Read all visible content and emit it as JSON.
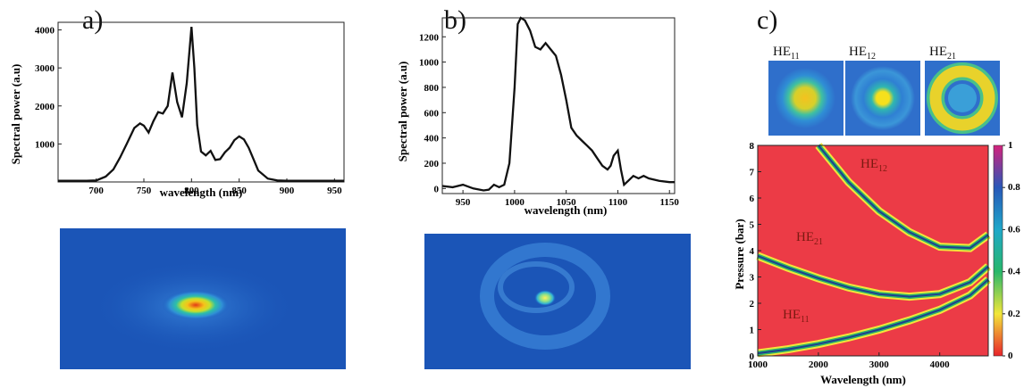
{
  "panels": {
    "a": "a)",
    "b": "b)",
    "c": "c)"
  },
  "chart_data": [
    {
      "type": "line",
      "panel": "a",
      "xlabel": "wavelength (nm)",
      "ylabel": "Spectral power (a.u)",
      "xlim": [
        660,
        960
      ],
      "ylim": [
        0,
        4200
      ],
      "xticks": [
        700,
        750,
        800,
        850,
        900,
        950
      ],
      "yticks": [
        1000,
        2000,
        3000,
        4000
      ],
      "x": [
        660,
        690,
        700,
        710,
        718,
        725,
        732,
        740,
        746,
        750,
        755,
        760,
        765,
        770,
        775,
        780,
        785,
        790,
        795,
        800,
        803,
        806,
        810,
        815,
        820,
        825,
        830,
        835,
        840,
        845,
        850,
        855,
        860,
        865,
        870,
        880,
        890,
        900,
        920,
        960
      ],
      "y": [
        30,
        30,
        40,
        140,
        330,
        640,
        1000,
        1420,
        1540,
        1480,
        1300,
        1600,
        1840,
        1800,
        2000,
        2880,
        2100,
        1700,
        2600,
        4080,
        3000,
        1500,
        800,
        700,
        820,
        580,
        600,
        780,
        900,
        1100,
        1200,
        1120,
        900,
        600,
        300,
        90,
        40,
        30,
        30,
        30
      ]
    },
    {
      "type": "line",
      "panel": "b",
      "xlabel": "wavelength (nm)",
      "ylabel": "Spectral power (a.u)",
      "xlim": [
        930,
        1155
      ],
      "ylim": [
        -40,
        1350
      ],
      "xticks": [
        950,
        1000,
        1050,
        1100,
        1150
      ],
      "yticks": [
        0,
        200,
        400,
        600,
        800,
        1000,
        1200
      ],
      "x": [
        930,
        940,
        950,
        960,
        970,
        975,
        980,
        985,
        990,
        995,
        1000,
        1003,
        1006,
        1010,
        1015,
        1020,
        1025,
        1030,
        1035,
        1040,
        1045,
        1050,
        1055,
        1060,
        1065,
        1070,
        1075,
        1080,
        1085,
        1090,
        1093,
        1096,
        1100,
        1103,
        1106,
        1110,
        1115,
        1120,
        1125,
        1130,
        1140,
        1150,
        1155
      ],
      "y": [
        20,
        10,
        30,
        0,
        -15,
        -10,
        30,
        10,
        30,
        200,
        800,
        1300,
        1350,
        1330,
        1250,
        1120,
        1100,
        1150,
        1100,
        1050,
        900,
        700,
        480,
        420,
        380,
        340,
        300,
        240,
        180,
        150,
        180,
        260,
        300,
        150,
        30,
        60,
        100,
        80,
        100,
        80,
        60,
        50,
        50
      ]
    },
    {
      "type": "heatmap",
      "panel": "c",
      "xlabel": "Wavelength (nm)",
      "ylabel": "Pressure (bar)",
      "xlim": [
        1000,
        4800
      ],
      "ylim": [
        0,
        8
      ],
      "xticks": [
        1000,
        2000,
        3000,
        4000
      ],
      "yticks": [
        0,
        1,
        2,
        3,
        4,
        5,
        6,
        7,
        8
      ],
      "colorbar_ticks": [
        0,
        0.2,
        0.4,
        0.6,
        0.8,
        1
      ],
      "series": [
        {
          "name": "HE12",
          "x": [
            2000,
            2500,
            3000,
            3500,
            4000,
            4500,
            4800
          ],
          "y": [
            8.0,
            6.6,
            5.5,
            4.7,
            4.15,
            4.1,
            4.6
          ]
        },
        {
          "name": "HE21",
          "x": [
            1000,
            1500,
            2000,
            2500,
            3000,
            3500,
            4000,
            4500,
            4800
          ],
          "y": [
            3.8,
            3.35,
            2.95,
            2.6,
            2.35,
            2.25,
            2.35,
            2.8,
            3.4
          ]
        },
        {
          "name": "HE11",
          "x": [
            1000,
            1500,
            2000,
            2500,
            3000,
            3500,
            4000,
            4500,
            4800
          ],
          "y": [
            0.1,
            0.25,
            0.45,
            0.7,
            1.0,
            1.35,
            1.75,
            2.3,
            2.9
          ]
        }
      ]
    }
  ],
  "modes": [
    {
      "label": "HE11",
      "main": "HE",
      "sub": "11"
    },
    {
      "label": "HE12",
      "main": "HE",
      "sub": "12"
    },
    {
      "label": "HE21",
      "main": "HE",
      "sub": "21"
    }
  ],
  "map_labels": [
    {
      "main": "HE",
      "sub": "12"
    },
    {
      "main": "HE",
      "sub": "21"
    },
    {
      "main": "HE",
      "sub": "11"
    }
  ]
}
